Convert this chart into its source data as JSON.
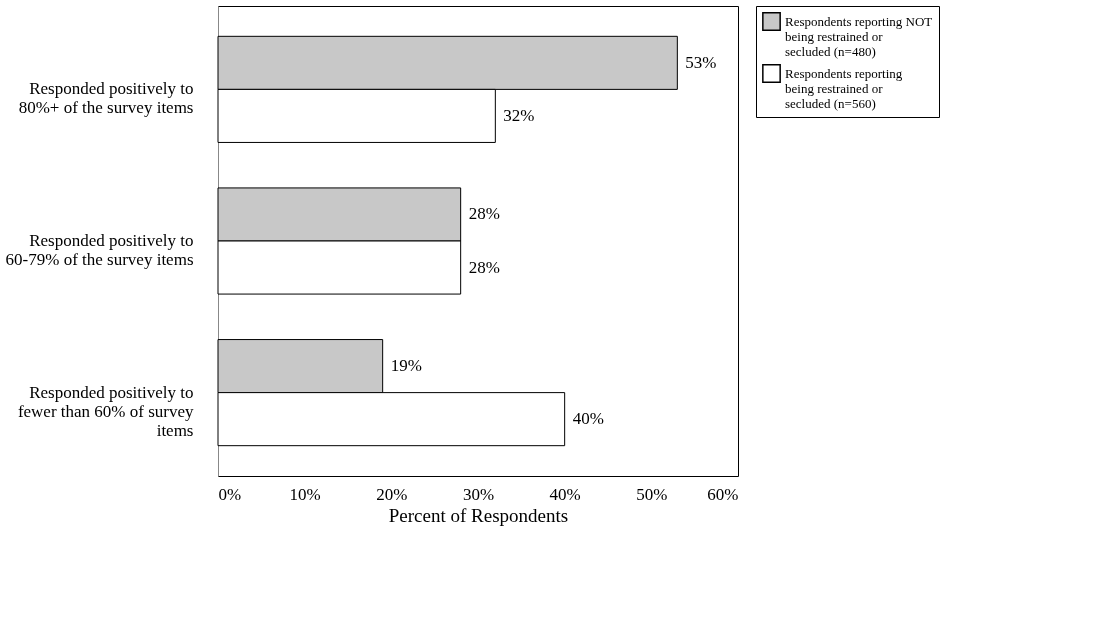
{
  "chart_data": {
    "type": "bar",
    "orientation": "horizontal",
    "categories": [
      "Responded positively to 80%+ of the survey items",
      "Responded positively to 60-79% of the survey items",
      "Responded positively to fewer than 60% of survey items"
    ],
    "series": [
      {
        "name": "Respondents reporting NOT being restrained or secluded (n=480)",
        "color": "#c8c8c8",
        "values": [
          53,
          28,
          19
        ],
        "value_labels": [
          "53%",
          "28%",
          "19%"
        ]
      },
      {
        "name": "Respondents reporting being restrained or secluded (n=560)",
        "color": "#ffffff",
        "values": [
          32,
          28,
          40
        ],
        "value_labels": [
          "32%",
          "28%",
          "40%"
        ]
      }
    ],
    "xlabel": "Percent of Respondents",
    "xlim": [
      0,
      60
    ],
    "xticks": [
      {
        "value": 0,
        "label": "0%"
      },
      {
        "value": 10,
        "label": "10%"
      },
      {
        "value": 20,
        "label": "20%"
      },
      {
        "value": 30,
        "label": "30%"
      },
      {
        "value": 40,
        "label": "40%"
      },
      {
        "value": 50,
        "label": "50%"
      },
      {
        "value": 60,
        "label": "60%"
      }
    ],
    "legend": "right",
    "grid": false
  }
}
